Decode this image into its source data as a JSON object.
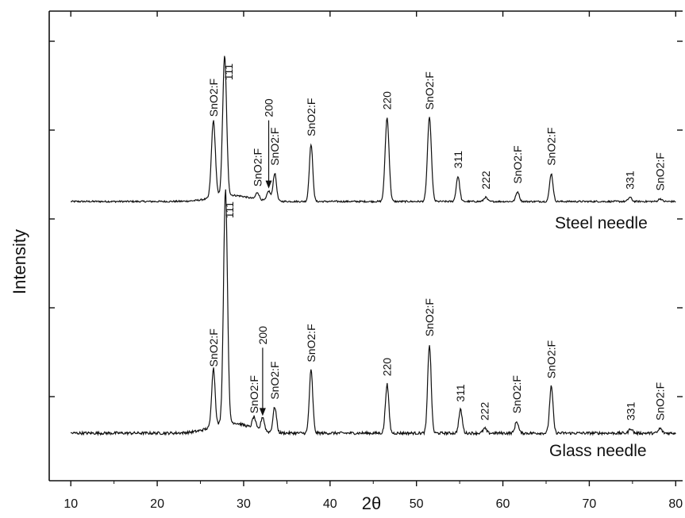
{
  "chart_data": {
    "type": "line",
    "xlabel": "2θ",
    "ylabel": "Intensity",
    "xlim": [
      7.5,
      80.8
    ],
    "xticks": [
      10,
      20,
      30,
      40,
      50,
      60,
      70,
      80
    ],
    "xtick_labels": [
      "10",
      "20",
      "30",
      "40",
      "50",
      "60",
      "70",
      "80"
    ],
    "y_tick_labels_shown": false,
    "legend": "none",
    "series": [
      {
        "name": "Steel needle",
        "peaks": [
          {
            "x": 26.5,
            "label": "SnO2:F",
            "relative_height": 0.55
          },
          {
            "x": 27.8,
            "label": "111",
            "relative_height": 1.0
          },
          {
            "x": 31.6,
            "label": "SnO2:F",
            "relative_height": 0.05
          },
          {
            "x": 32.9,
            "label": "200",
            "relative_height": 0.07,
            "arrow": true
          },
          {
            "x": 33.6,
            "label": "SnO2:F",
            "relative_height": 0.2
          },
          {
            "x": 37.8,
            "label": "SnO2:F",
            "relative_height": 0.41
          },
          {
            "x": 51.5,
            "label": "SnO2:F",
            "relative_height": 0.6
          },
          {
            "x": 54.8,
            "label": "311",
            "relative_height": 0.18
          },
          {
            "x": 58.0,
            "label": "222",
            "relative_height": 0.03
          },
          {
            "x": 61.7,
            "label": "SnO2:F",
            "relative_height": 0.07
          },
          {
            "x": 65.6,
            "label": "SnO2:F",
            "relative_height": 0.2
          },
          {
            "x": 74.7,
            "label": "331",
            "relative_height": 0.03
          },
          {
            "x": 78.2,
            "label": "SnO2:F",
            "relative_height": 0.02
          }
        ],
        "extra_peaks": [
          {
            "x": 46.6,
            "label": "220",
            "relative_height": 0.6
          }
        ]
      },
      {
        "name": "Glass needle",
        "peaks": [
          {
            "x": 26.5,
            "label": "SnO2:F",
            "relative_height": 0.25
          },
          {
            "x": 27.9,
            "label": "111",
            "relative_height": 1.0
          },
          {
            "x": 31.2,
            "label": "SnO2:F",
            "relative_height": 0.05
          },
          {
            "x": 32.2,
            "label": "200",
            "relative_height": 0.06,
            "arrow": true
          },
          {
            "x": 33.6,
            "label": "SnO2:F",
            "relative_height": 0.11
          },
          {
            "x": 37.8,
            "label": "SnO2:F",
            "relative_height": 0.27
          },
          {
            "x": 46.6,
            "label": "220",
            "relative_height": 0.21
          },
          {
            "x": 51.5,
            "label": "SnO2:F",
            "relative_height": 0.38
          },
          {
            "x": 55.1,
            "label": "311",
            "relative_height": 0.1
          },
          {
            "x": 57.9,
            "label": "222",
            "relative_height": 0.02
          },
          {
            "x": 61.6,
            "label": "SnO2:F",
            "relative_height": 0.05
          },
          {
            "x": 65.6,
            "label": "SnO2:F",
            "relative_height": 0.2
          },
          {
            "x": 74.8,
            "label": "331",
            "relative_height": 0.02
          },
          {
            "x": 78.2,
            "label": "SnO2:F",
            "relative_height": 0.02
          }
        ]
      }
    ]
  }
}
